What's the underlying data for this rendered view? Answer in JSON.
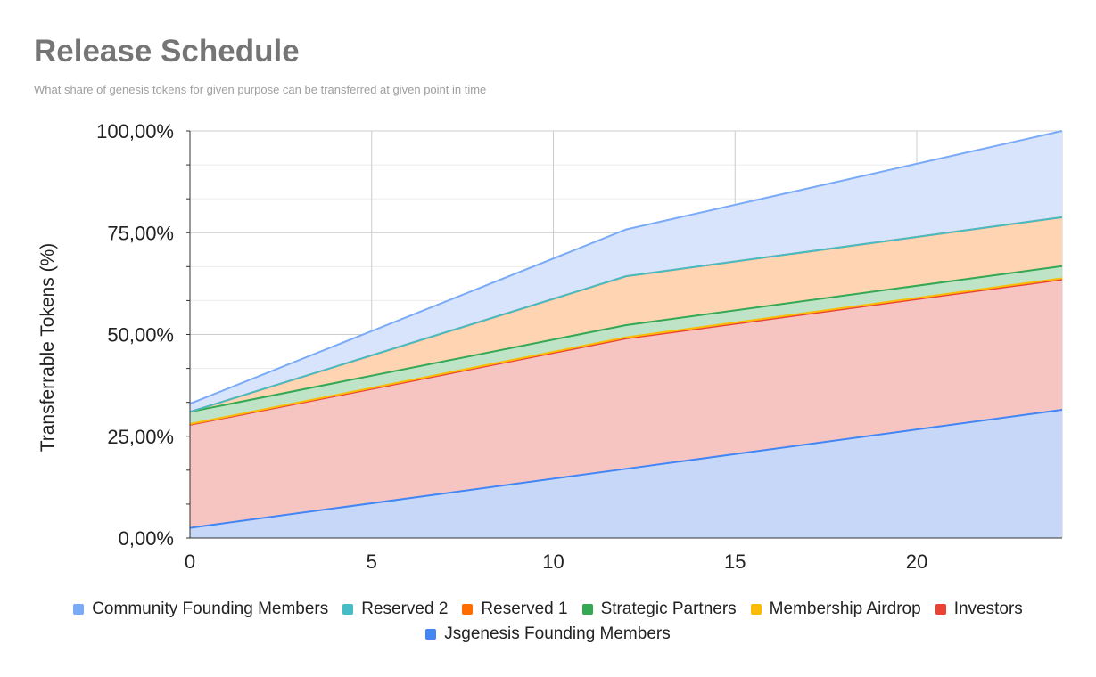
{
  "chart_data": {
    "type": "area",
    "stacked": true,
    "title": "Release Schedule",
    "subtitle": "What share of genesis tokens for given purpose can be transferred at given point in time",
    "xlabel": "",
    "ylabel": "Transferrable Tokens (%)",
    "xlim": [
      0,
      24
    ],
    "ylim": [
      0,
      100
    ],
    "x_ticks": [
      "0",
      "5",
      "10",
      "15",
      "20"
    ],
    "x_tick_values": [
      0,
      5,
      10,
      15,
      20
    ],
    "y_ticks": [
      "0,00%",
      "25,00%",
      "50,00%",
      "75,00%",
      "100,00%"
    ],
    "y_tick_values": [
      0,
      25,
      50,
      75,
      100
    ],
    "grid": true,
    "legend_position": "bottom",
    "x": [
      0,
      12,
      24
    ],
    "series": [
      {
        "name": "Jsgenesis Founding Members",
        "color": "#4285f4",
        "fill": "#c6d7f7",
        "values": [
          2.5,
          17.0,
          31.5
        ]
      },
      {
        "name": "Investors",
        "color": "#ea4335",
        "fill": "#f7c5c1",
        "values": [
          25.3,
          32.0,
          32.0
        ]
      },
      {
        "name": "Membership Airdrop",
        "color": "#fbbc04",
        "fill": "#fde7a8",
        "values": [
          0.2,
          0.3,
          0.3
        ]
      },
      {
        "name": "Strategic Partners",
        "color": "#34a853",
        "fill": "#bfe3c6",
        "values": [
          3.0,
          3.0,
          3.0
        ]
      },
      {
        "name": "Reserved 1",
        "color": "#ff6d01",
        "fill": "#fed4b3",
        "values": [
          0.0,
          12.0,
          12.0
        ]
      },
      {
        "name": "Reserved 2",
        "color": "#46bdc6",
        "fill": "#c2e8eb",
        "values": [
          0.0,
          0.0,
          0.0
        ]
      },
      {
        "name": "Community Founding Members",
        "color": "#7baaf7",
        "fill": "#d7e4fb",
        "values": [
          2.0,
          11.5,
          21.2
        ]
      }
    ],
    "legend_order": [
      "Community Founding Members",
      "Reserved 2",
      "Reserved 1",
      "Strategic Partners",
      "Membership Airdrop",
      "Investors",
      "Jsgenesis Founding Members"
    ]
  }
}
